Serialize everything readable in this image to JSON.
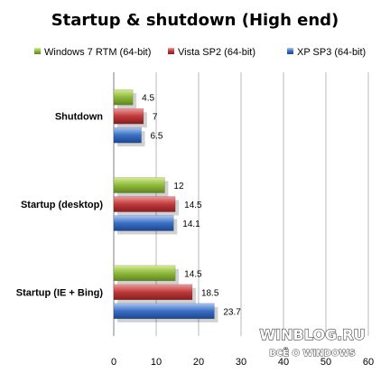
{
  "chart_data": {
    "type": "bar",
    "orientation": "horizontal",
    "title": "Startup & shutdown  (High end)",
    "categories": [
      "Shutdown",
      "Startup (desktop)",
      "Startup (IE + Bing)"
    ],
    "series": [
      {
        "name": "Windows 7 RTM  (64-bit)",
        "color": "#8fb93a",
        "values": [
          4.5,
          12,
          14.5
        ],
        "labels": [
          "4.5",
          "12",
          "14.5"
        ]
      },
      {
        "name": "Vista SP2 (64-bit)",
        "color": "#c0393b",
        "values": [
          7,
          14.5,
          18.5
        ],
        "labels": [
          "7",
          "14.5",
          "18.5"
        ]
      },
      {
        "name": "XP SP3 (64-bit)",
        "color": "#3a6fc4",
        "values": [
          6.5,
          14.1,
          23.7
        ],
        "labels": [
          "6.5",
          "14.1",
          "23.7"
        ]
      }
    ],
    "xlim": [
      0,
      60
    ],
    "xticks": [
      "0",
      "10",
      "20",
      "30",
      "40",
      "50",
      "60"
    ],
    "grid": "vertical",
    "legend": "top"
  },
  "watermark": {
    "main": "WINBLOG.RU",
    "sub": "ВСЁ О WINDOWS"
  }
}
